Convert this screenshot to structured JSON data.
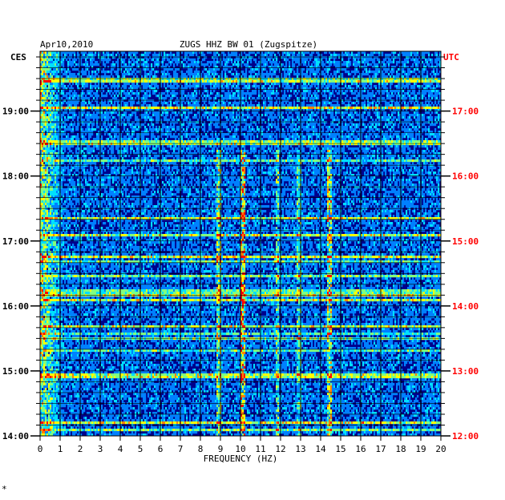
{
  "chart_data": {
    "type": "heatmap",
    "title": "ZUGS HHZ BW 01 (Zugspitze)",
    "date": "Apr10,2010",
    "left_tz": "CES",
    "right_tz": "UTC",
    "xlabel": "FREQUENCY (HZ)",
    "xlim": [
      0,
      20
    ],
    "x_ticks": [
      "0",
      "1",
      "2",
      "3",
      "4",
      "5",
      "6",
      "7",
      "8",
      "9",
      "10",
      "11",
      "12",
      "13",
      "14",
      "15",
      "16",
      "17",
      "18",
      "19",
      "20"
    ],
    "y_range_ces_hours": [
      14.0,
      19.92
    ],
    "y_ticks_ces": [
      {
        "hour": 19,
        "label": "19:00"
      },
      {
        "hour": 18,
        "label": "18:00"
      },
      {
        "hour": 17,
        "label": "17:00"
      },
      {
        "hour": 16,
        "label": "16:00"
      },
      {
        "hour": 15,
        "label": "15:00"
      },
      {
        "hour": 14,
        "label": "14:00"
      }
    ],
    "y_ticks_utc": [
      {
        "hour": 19,
        "label": "17:00"
      },
      {
        "hour": 18,
        "label": "16:00"
      },
      {
        "hour": 17,
        "label": "15:00"
      },
      {
        "hour": 16,
        "label": "14:00"
      },
      {
        "hour": 15,
        "label": "13:00"
      },
      {
        "hour": 14,
        "label": "12:00"
      }
    ],
    "grid": true,
    "colormap": [
      "#00008b",
      "#0000ff",
      "#0080ff",
      "#00e0ff",
      "#80ff80",
      "#ffff00",
      "#ff8000",
      "#ff0000"
    ],
    "persistent_bands_hz": [
      {
        "freq": 8.9,
        "strength": 0.45
      },
      {
        "freq": 10.1,
        "strength": 0.75
      },
      {
        "freq": 11.8,
        "strength": 0.35
      },
      {
        "freq": 14.4,
        "strength": 0.55
      },
      {
        "freq": 12.9,
        "strength": 0.3
      }
    ]
  },
  "footer_mark": "*"
}
